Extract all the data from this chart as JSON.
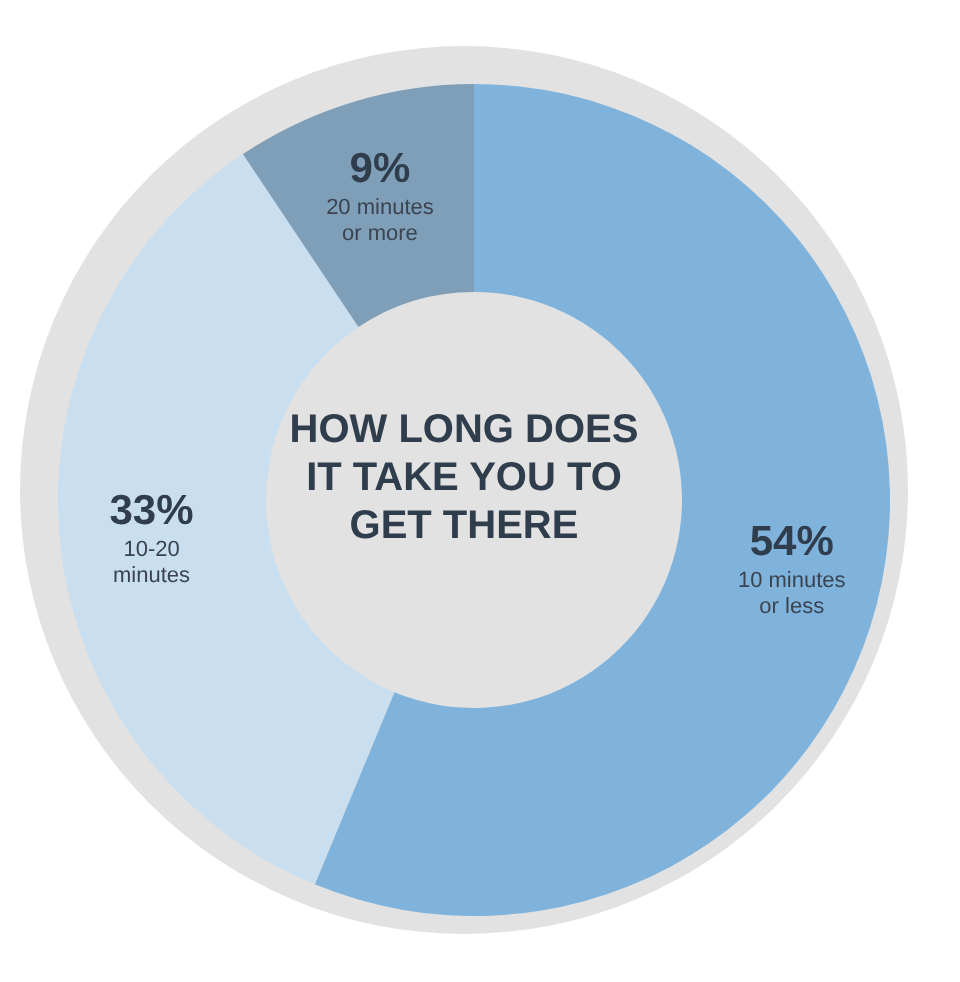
{
  "chart_data": {
    "type": "donut",
    "title": "HOW LONG DOES IT TAKE YOU TO GET THERE",
    "categories": [
      "10 minutes or less",
      "10-20 minutes",
      "20 minutes or more"
    ],
    "values": [
      54,
      33,
      9
    ],
    "value_labels": [
      "54%",
      "33%",
      "9%"
    ],
    "colors": [
      "#7fb3dc",
      "#c9deee",
      "#7f9fb8"
    ],
    "legend": false
  }
}
